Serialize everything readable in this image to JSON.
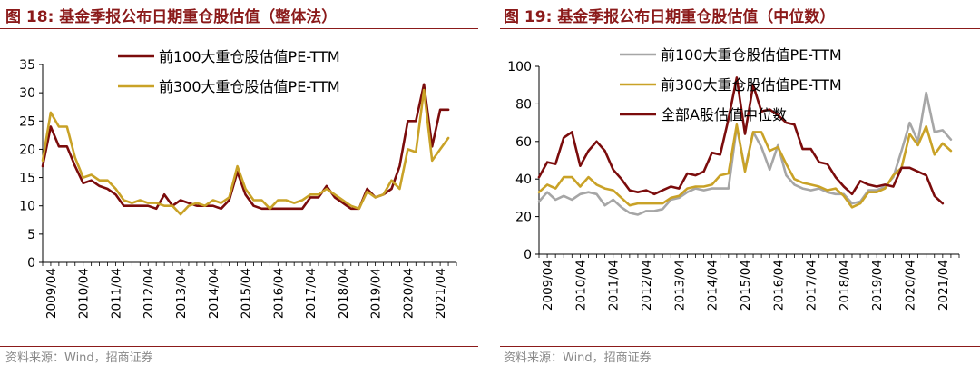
{
  "colors": {
    "title": "#8b1a1a",
    "series_dark": "#7b0c0c",
    "series_gold": "#c9a227",
    "series_gray": "#a6a6a6",
    "source": "#888888",
    "axis": "#000000"
  },
  "chart_data": [
    {
      "type": "line",
      "title_prefix": "图 18:",
      "title_text": "基金季报公布日期重仓股估值（整体法）",
      "source": "资料来源：Wind，招商证券",
      "xlabel": "",
      "ylabel": "",
      "ylim": [
        0,
        35
      ],
      "yticks": [
        0,
        5,
        10,
        15,
        20,
        25,
        30,
        35
      ],
      "x_tick_labels": [
        "2009/04",
        "2010/04",
        "2011/04",
        "2012/04",
        "2013/04",
        "2014/04",
        "2015/04",
        "2016/04",
        "2017/04",
        "2018/04",
        "2019/04",
        "2020/04",
        "2021/04"
      ],
      "x_start": "2009/01",
      "legend_position": "top-left",
      "series": [
        {
          "name": "前100大重仓股估值PE-TTM",
          "color_key": "series_dark",
          "values": [
            17,
            24,
            20.5,
            20.5,
            17,
            14,
            14.5,
            13.5,
            13,
            12,
            10,
            10,
            10,
            10,
            9.5,
            12,
            10,
            11,
            10.5,
            10,
            10,
            10,
            9.5,
            11,
            16,
            12,
            10,
            9.5,
            9.5,
            9.5,
            9.5,
            9.5,
            9.5,
            11.5,
            11.5,
            13.5,
            11.5,
            10.5,
            9.5,
            9.5,
            13,
            11.5,
            12,
            13,
            17,
            25,
            25,
            31.5,
            20.5,
            27,
            27
          ]
        },
        {
          "name": "前300大重仓股估值PE-TTM",
          "color_key": "series_gold",
          "values": [
            18,
            26.5,
            24,
            24,
            18.5,
            15,
            15.5,
            14.5,
            14.5,
            13,
            11,
            10.5,
            11,
            10.5,
            10.5,
            10,
            10,
            8.5,
            10,
            10.5,
            10,
            11,
            10.5,
            11.5,
            17,
            13,
            11,
            11,
            9.5,
            11,
            11,
            10.5,
            11,
            12,
            12,
            13,
            12,
            11,
            10,
            9.5,
            12.5,
            11.5,
            12,
            14.5,
            13,
            20,
            19.5,
            30.5,
            18,
            20,
            22
          ]
        }
      ]
    },
    {
      "type": "line",
      "title_prefix": "图 19:",
      "title_text": "基金季报公布日期重仓股估值（中位数）",
      "source": "资料来源：Wind，招商证券",
      "xlabel": "",
      "ylabel": "",
      "ylim": [
        0,
        100
      ],
      "yticks": [
        0,
        20,
        40,
        60,
        80,
        100
      ],
      "x_tick_labels": [
        "2009/04",
        "2010/04",
        "2011/04",
        "2012/04",
        "2013/04",
        "2014/04",
        "2015/04",
        "2016/04",
        "2017/04",
        "2018/04",
        "2019/04",
        "2020/04",
        "2021/04"
      ],
      "x_start": "2009/01",
      "legend_position": "top-left",
      "series": [
        {
          "name": "前100大重仓股估值PE-TTM",
          "color_key": "series_gray",
          "values": [
            28,
            33,
            29,
            31,
            29,
            32,
            33,
            32,
            26,
            29,
            25,
            22,
            21,
            23,
            23,
            24,
            29,
            30,
            33,
            35,
            34,
            35,
            35,
            35,
            68,
            45,
            65,
            57,
            45,
            58,
            42,
            37,
            35,
            34,
            35,
            33,
            32,
            32,
            27,
            28,
            34,
            34,
            36,
            41,
            55,
            70,
            60,
            86,
            65,
            66,
            61
          ]
        },
        {
          "name": "前300大重仓股估值PE-TTM",
          "color_key": "series_gold",
          "values": [
            33,
            37,
            35,
            41,
            41,
            36,
            41,
            37,
            35,
            34,
            30,
            26,
            27,
            27,
            27,
            27,
            30,
            31,
            35,
            36,
            36,
            37,
            42,
            43,
            69,
            44,
            65,
            65,
            55,
            57,
            48,
            40,
            38,
            37,
            36,
            34,
            35,
            31,
            25,
            27,
            33,
            33,
            35,
            42,
            46,
            64,
            58,
            68,
            53,
            59,
            55
          ]
        },
        {
          "name": "全部A股估值中位数",
          "color_key": "series_dark",
          "values": [
            41,
            49,
            48,
            62,
            65,
            47,
            55,
            60,
            55,
            45,
            40,
            34,
            33,
            34,
            32,
            34,
            36,
            35,
            43,
            42,
            44,
            54,
            53,
            72,
            94,
            64,
            90,
            76,
            77,
            74,
            70,
            69,
            56,
            56,
            49,
            48,
            41,
            36,
            32,
            39,
            37,
            36,
            37,
            36,
            46,
            46,
            44,
            42,
            31,
            27
          ]
        }
      ]
    }
  ]
}
